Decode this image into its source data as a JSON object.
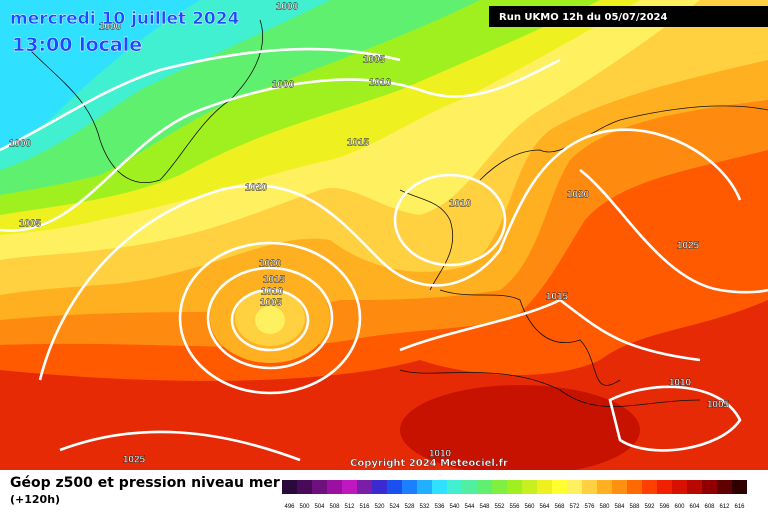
{
  "header": {
    "title": "mercredi 10 juillet 2024",
    "time": "13:00 locale",
    "run": "Run UKMO 12h du 05/07/2024"
  },
  "isobar_labels": [
    "1000",
    "1000",
    "1005",
    "1010",
    "1000",
    "1015",
    "1000",
    "1020",
    "1005",
    "1010",
    "1020",
    "1015",
    "1010",
    "1005",
    "1020",
    "1025",
    "1015",
    "1010",
    "1005",
    "1010",
    "1025"
  ],
  "copyright": "Copyright 2024 Meteociel.fr",
  "footer": {
    "title": "Géop z500 et pression niveau mer",
    "subtitle": "(+120h)"
  },
  "scale": {
    "labels": [
      496,
      500,
      504,
      508,
      512,
      516,
      520,
      524,
      528,
      532,
      536,
      540,
      544,
      548,
      552,
      556,
      560,
      564,
      568,
      572,
      576,
      580,
      584,
      588,
      592,
      596,
      600,
      604,
      608,
      612,
      616
    ],
    "colors": [
      "#2a0a3a",
      "#4a0a5a",
      "#6e107e",
      "#9a10a0",
      "#c018c0",
      "#7a1ea8",
      "#3a2ad0",
      "#1a50f0",
      "#1a80ff",
      "#20b0ff",
      "#30e0ff",
      "#40f0d0",
      "#50f0a0",
      "#60f070",
      "#80f040",
      "#a0f020",
      "#c8f020",
      "#eef020",
      "#ffff30",
      "#fff060",
      "#ffd040",
      "#ffb020",
      "#ff9010",
      "#ff6a00",
      "#ff4000",
      "#f02000",
      "#d81000",
      "#b80800",
      "#900000",
      "#600000",
      "#300000"
    ]
  }
}
